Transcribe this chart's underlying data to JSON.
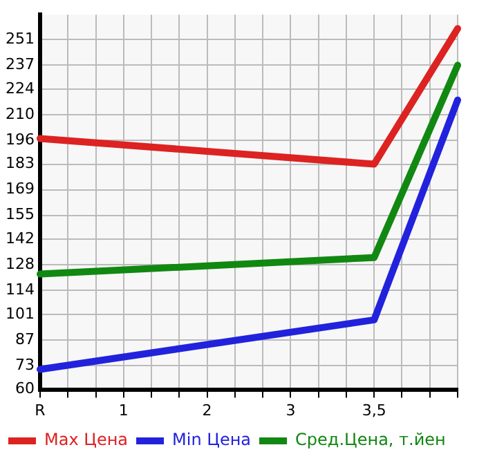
{
  "chart_data": {
    "type": "line",
    "categories": [
      "R",
      null,
      null,
      "1",
      null,
      null,
      "2",
      null,
      null,
      "3",
      null,
      null,
      "3,5",
      null,
      null,
      null
    ],
    "series": [
      {
        "name": "Max Цена",
        "color": "#dd2222",
        "values": [
          197,
          null,
          null,
          null,
          null,
          null,
          null,
          null,
          null,
          null,
          null,
          null,
          183,
          null,
          null,
          257
        ]
      },
      {
        "name": "Min Цена",
        "color": "#2222dd",
        "values": [
          71,
          null,
          null,
          null,
          null,
          null,
          null,
          null,
          null,
          null,
          null,
          null,
          98,
          null,
          null,
          218
        ]
      },
      {
        "name": "Сред.Цена, т.йен",
        "color": "#118811",
        "values": [
          123,
          null,
          null,
          null,
          null,
          null,
          null,
          null,
          null,
          null,
          null,
          null,
          132,
          null,
          null,
          237
        ]
      }
    ],
    "ylim": [
      60,
      264.6
    ],
    "yticks": [
      60,
      73,
      87,
      101,
      114,
      128,
      142,
      155,
      169,
      183,
      196,
      210,
      224,
      237,
      251
    ],
    "grid": true,
    "legend": "bottom",
    "marker": "none",
    "line_style": "solid"
  }
}
